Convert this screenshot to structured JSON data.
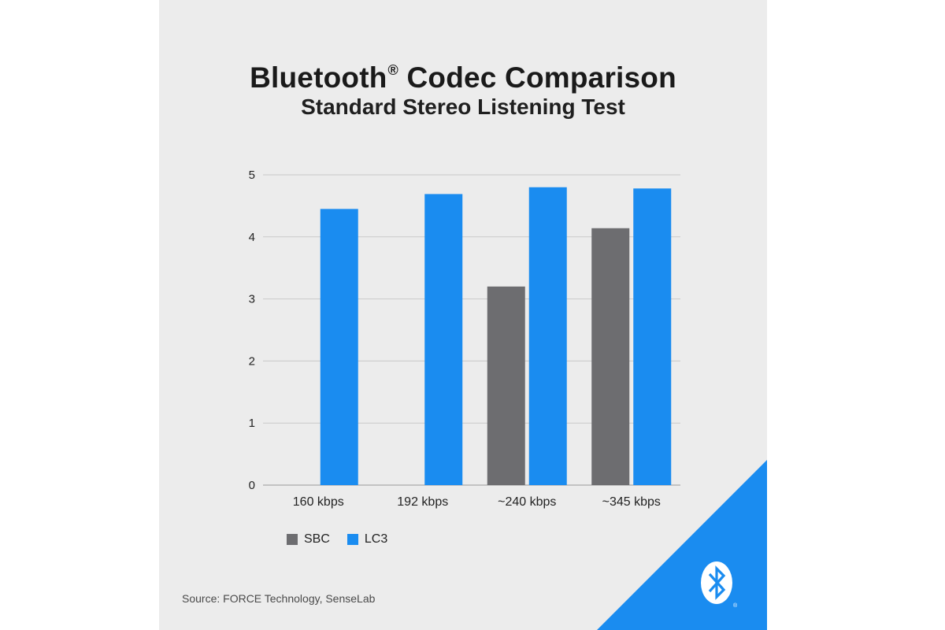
{
  "chart_data": {
    "type": "bar",
    "title": "Bluetooth",
    "title_mark": "®",
    "title_rest": "Codec Comparison",
    "subtitle": "Standard Stereo Listening Test",
    "categories": [
      "160 kbps",
      "192 kbps",
      "~240 kbps",
      "~345 kbps"
    ],
    "series": [
      {
        "name": "SBC",
        "color": "#6d6d70",
        "values": [
          null,
          null,
          3.2,
          4.14
        ]
      },
      {
        "name": "LC3",
        "color": "#1a8cf0",
        "values": [
          4.45,
          4.69,
          4.8,
          4.78
        ]
      }
    ],
    "ylim": [
      0,
      5
    ],
    "yticks": [
      "0",
      "1",
      "2",
      "3",
      "4",
      "5"
    ],
    "grid": true,
    "legend": "bottom-left"
  },
  "source": "Source: FORCE Technology, SenseLab",
  "colors": {
    "background": "#ececec",
    "accent": "#1a8cf0"
  },
  "logo": {
    "icon": "bluetooth-icon",
    "mark": "®"
  }
}
